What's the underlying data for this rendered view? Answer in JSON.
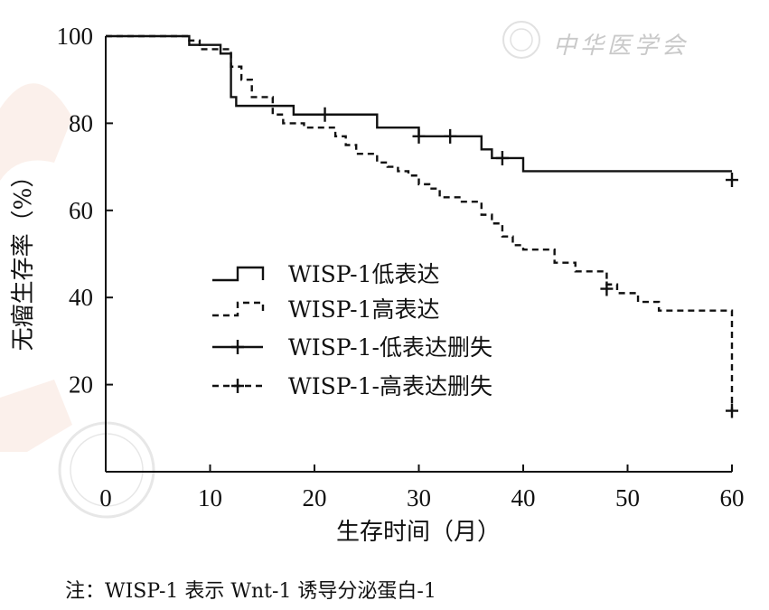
{
  "chart_data": {
    "type": "line",
    "xlabel": "生存时间（月）",
    "ylabel": "无瘤生存率（%）",
    "xlim": [
      0,
      60
    ],
    "ylim": [
      0,
      100
    ],
    "xticks": [
      0,
      10,
      20,
      30,
      40,
      50,
      60
    ],
    "yticks": [
      20,
      40,
      60,
      80,
      100
    ],
    "xtick_labels": [
      "0",
      "10",
      "20",
      "30",
      "40",
      "50",
      "60"
    ],
    "ytick_labels": [
      "20",
      "40",
      "60",
      "80",
      "100"
    ],
    "grid": false,
    "legend_position": "center-left",
    "series": [
      {
        "name": "WISP-1低表达",
        "style": "solid",
        "step": true,
        "x": [
          0,
          8,
          8,
          11,
          11,
          12,
          12,
          12.5,
          12.5,
          15,
          15,
          18,
          18,
          26,
          26,
          30,
          30,
          36,
          36,
          37,
          37,
          40,
          40,
          60
        ],
        "y": [
          100,
          100,
          98,
          98,
          96,
          96,
          86,
          86,
          84,
          84,
          84,
          84,
          82,
          82,
          79,
          79,
          77,
          77,
          74,
          74,
          72,
          72,
          69,
          69
        ]
      },
      {
        "name": "WISP-1高表达",
        "style": "dashed",
        "step": true,
        "x": [
          0,
          8,
          8,
          9,
          9,
          12,
          12,
          13,
          13,
          14,
          14,
          16,
          16,
          17,
          17,
          19,
          19,
          22,
          22,
          23,
          23,
          24,
          24,
          26,
          26,
          27,
          27,
          28,
          28,
          29,
          29,
          30,
          30,
          31,
          31,
          32,
          32,
          34,
          34,
          36,
          36,
          37,
          37,
          38,
          38,
          39,
          39,
          40,
          40,
          43,
          43,
          45,
          45,
          48,
          48,
          49,
          49,
          51,
          51,
          53,
          53,
          60,
          60
        ],
        "y": [
          100,
          100,
          99,
          99,
          97,
          97,
          93,
          93,
          90,
          90,
          86,
          86,
          82,
          82,
          80,
          80,
          79,
          79,
          77,
          77,
          75,
          75,
          73,
          73,
          71,
          71,
          70,
          70,
          69,
          69,
          68,
          68,
          66,
          66,
          65,
          65,
          63,
          63,
          62,
          62,
          59,
          59,
          57,
          57,
          54,
          54,
          52,
          52,
          51,
          51,
          48,
          48,
          46,
          46,
          43,
          43,
          41,
          41,
          39,
          39,
          37,
          37,
          14
        ]
      },
      {
        "name": "WISP-1-低表达删失",
        "style": "censor",
        "x": [
          21,
          30,
          33,
          38,
          60
        ],
        "y": [
          82,
          77,
          77,
          72,
          67
        ]
      },
      {
        "name": "WISP-1-高表达删失",
        "style": "censor",
        "x": [
          48,
          60
        ],
        "y": [
          42,
          14
        ]
      }
    ],
    "note": "注：WISP-1 表示 Wnt-1 诱导分泌蛋白-1"
  },
  "watermark": {
    "text": "中华医学会",
    "seal": "CHINESE MEDICAL ASSOCIATION"
  },
  "colors": {
    "line": "#111111",
    "watermark": "#c9c9c9",
    "watermark_red": "#f3d2c2"
  }
}
